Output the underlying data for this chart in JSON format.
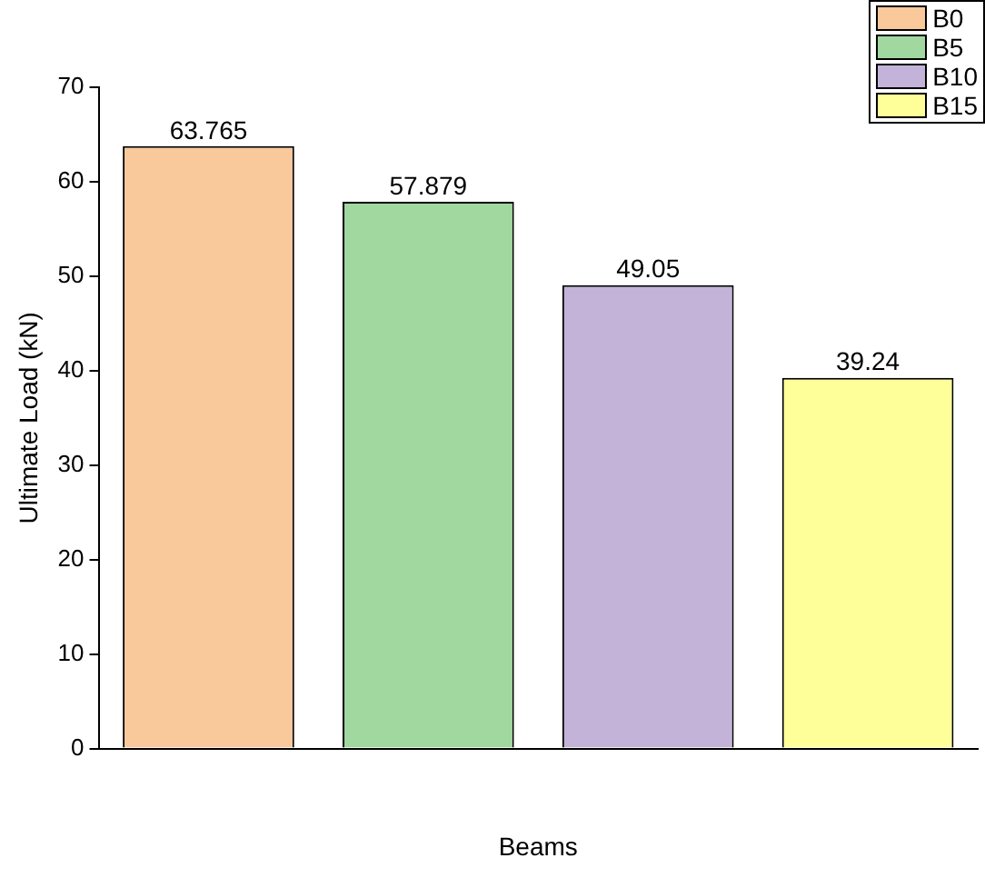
{
  "chart_data": {
    "type": "bar",
    "xlabel": "Beams",
    "ylabel": "Ultimate Load (kN)",
    "categories": [
      null,
      null,
      null,
      null
    ],
    "series": [
      {
        "name": "B0",
        "color": "#f9c89b",
        "values": [
          63.765,
          null,
          null,
          null
        ]
      },
      {
        "name": "B5",
        "color": "#a0d8a0",
        "values": [
          null,
          57.879,
          null,
          null
        ]
      },
      {
        "name": "B10",
        "color": "#c3b3d8",
        "values": [
          null,
          null,
          49.05,
          null
        ]
      },
      {
        "name": "B15",
        "color": "#ffff99",
        "values": [
          null,
          null,
          null,
          39.24
        ]
      }
    ],
    "ylim": [
      0,
      70
    ],
    "yticks": [
      0,
      10,
      20,
      30,
      40,
      50,
      60,
      70
    ],
    "grid": false,
    "legend": "top right",
    "data_labels": true
  }
}
